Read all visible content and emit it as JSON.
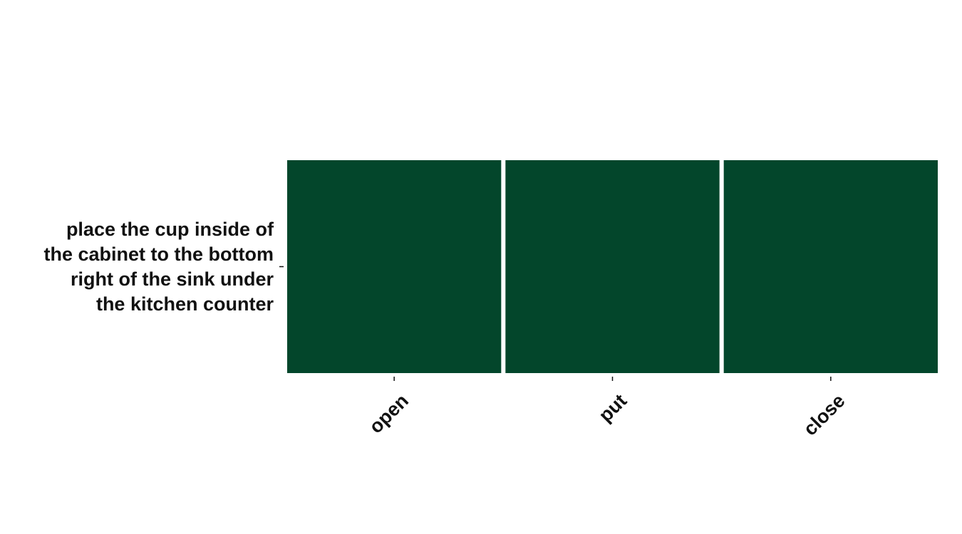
{
  "chart_data": {
    "type": "heatmap",
    "rows": [
      "place the cup inside of the cabinet to the bottom right of the sink under the kitchen counter"
    ],
    "row_label_lines": [
      [
        "place the cup inside of",
        "the cabinet to the bottom",
        "right of the sink under",
        "the kitchen counter"
      ]
    ],
    "columns": [
      "open",
      "put",
      "close"
    ],
    "values": [
      [
        1,
        1,
        1
      ]
    ],
    "cell_color": "#03462b",
    "background": "#ffffff",
    "title": "",
    "xlabel": "",
    "ylabel": "",
    "legend": "none"
  }
}
